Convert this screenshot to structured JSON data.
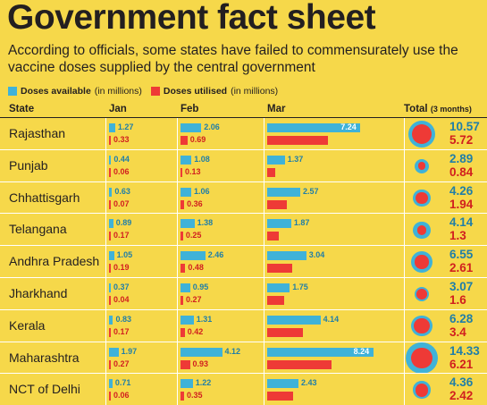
{
  "title": "Government fact sheet",
  "subtitle": "According to officials, some states have failed to commensurately use the vaccine doses supplied by the central government",
  "legend": {
    "available": {
      "label": "Doses available",
      "unit": "(in millions)"
    },
    "utilised": {
      "label": "Doses utilised",
      "unit": "(in millions)"
    }
  },
  "headers": {
    "state": "State",
    "jan": "Jan",
    "feb": "Feb",
    "mar": "Mar",
    "total": "Total",
    "total_note": "(3 months)"
  },
  "colors": {
    "available": "#3fb2d8",
    "utilised": "#ee3a36",
    "background": "#f6d84a"
  },
  "chart_data": {
    "type": "bar",
    "title": "Government fact sheet",
    "months": [
      "Jan",
      "Feb",
      "Mar"
    ],
    "series_names": [
      "Doses available",
      "Doses utilised"
    ],
    "unit": "millions",
    "rows": [
      {
        "state": "Rajasthan",
        "available": [
          1.27,
          2.06,
          7.24
        ],
        "utilised": [
          0.33,
          0.69,
          4.7
        ],
        "total_available": "10.57",
        "total_utilised": "5.72"
      },
      {
        "state": "Punjab",
        "available": [
          0.44,
          1.08,
          1.37
        ],
        "utilised": [
          0.06,
          0.13,
          0.65
        ],
        "total_available": "2.89",
        "total_utilised": "0.84"
      },
      {
        "state": "Chhattisgarh",
        "available": [
          0.63,
          1.06,
          2.57
        ],
        "utilised": [
          0.07,
          0.36,
          1.5
        ],
        "total_available": "4.26",
        "total_utilised": "1.94"
      },
      {
        "state": "Telangana",
        "available": [
          0.89,
          1.38,
          1.87
        ],
        "utilised": [
          0.17,
          0.25,
          0.88
        ],
        "total_available": "4.14",
        "total_utilised": "1.3"
      },
      {
        "state": "Andhra Pradesh",
        "available": [
          1.05,
          2.46,
          3.04
        ],
        "utilised": [
          0.19,
          0.48,
          1.94
        ],
        "total_available": "6.55",
        "total_utilised": "2.61"
      },
      {
        "state": "Jharkhand",
        "available": [
          0.37,
          0.95,
          1.75
        ],
        "utilised": [
          0.04,
          0.27,
          1.29
        ],
        "total_available": "3.07",
        "total_utilised": "1.6"
      },
      {
        "state": "Kerala",
        "available": [
          0.83,
          1.31,
          4.14
        ],
        "utilised": [
          0.17,
          0.42,
          2.81
        ],
        "total_available": "6.28",
        "total_utilised": "3.4"
      },
      {
        "state": "Maharashtra",
        "available": [
          1.97,
          4.12,
          8.24
        ],
        "utilised": [
          0.27,
          0.93,
          5.01
        ],
        "total_available": "14.33",
        "total_utilised": "6.21"
      },
      {
        "state": "NCT of Delhi",
        "available": [
          0.71,
          1.22,
          2.43
        ],
        "utilised": [
          0.06,
          0.35,
          2.01
        ],
        "total_available": "4.36",
        "total_utilised": "2.42"
      }
    ]
  }
}
